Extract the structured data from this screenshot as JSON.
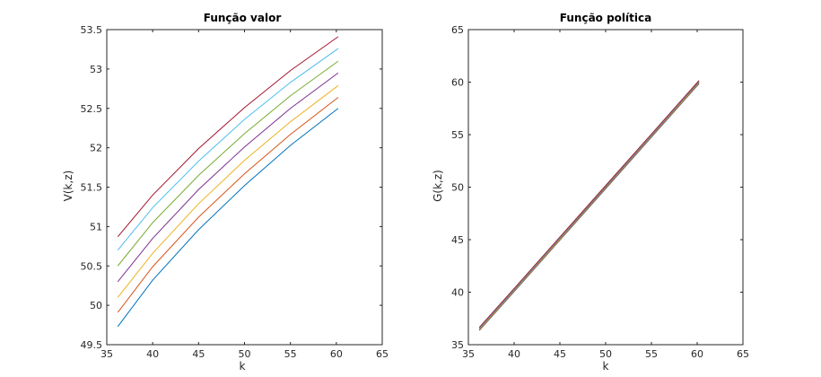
{
  "chart_data": [
    {
      "type": "line",
      "title": "Função valor",
      "xlabel": "k",
      "ylabel": "V(k,z)",
      "xlim": [
        35,
        65
      ],
      "ylim": [
        49.5,
        53.5
      ],
      "xticks": [
        35,
        40,
        45,
        50,
        55,
        60,
        65
      ],
      "yticks": [
        49.5,
        50,
        50.5,
        51,
        51.5,
        52,
        52.5,
        53,
        53.5
      ],
      "x": [
        36.2,
        40,
        45,
        50,
        55,
        60.2
      ],
      "series": [
        {
          "color": "#0072BD",
          "values": [
            49.73,
            50.32,
            50.96,
            51.52,
            52.03,
            52.5
          ]
        },
        {
          "color": "#D95319",
          "values": [
            49.91,
            50.49,
            51.12,
            51.67,
            52.17,
            52.64
          ]
        },
        {
          "color": "#EDB120",
          "values": [
            50.1,
            50.66,
            51.29,
            51.84,
            52.33,
            52.79
          ]
        },
        {
          "color": "#7E2F8E",
          "values": [
            50.3,
            50.85,
            51.47,
            52.01,
            52.5,
            52.95
          ]
        },
        {
          "color": "#77AC30",
          "values": [
            50.5,
            51.05,
            51.65,
            52.18,
            52.66,
            53.1
          ]
        },
        {
          "color": "#4DBEEE",
          "values": [
            50.7,
            51.24,
            51.83,
            52.36,
            52.83,
            53.26
          ]
        },
        {
          "color": "#A2142F",
          "values": [
            50.87,
            51.4,
            51.99,
            52.51,
            52.98,
            53.41
          ]
        }
      ]
    },
    {
      "type": "line",
      "title": "Função política",
      "xlabel": "k",
      "ylabel": "G(k,z)",
      "xlim": [
        35,
        65
      ],
      "ylim": [
        35,
        65
      ],
      "xticks": [
        35,
        40,
        45,
        50,
        55,
        60,
        65
      ],
      "yticks": [
        35,
        40,
        45,
        50,
        55,
        60,
        65
      ],
      "x": [
        36.2,
        40,
        45,
        50,
        55,
        60.2
      ],
      "series": [
        {
          "color": "#0072BD",
          "values": [
            36.35,
            40.05,
            44.95,
            49.85,
            54.75,
            59.85
          ]
        },
        {
          "color": "#D95319",
          "values": [
            36.4,
            40.1,
            45.0,
            49.9,
            54.8,
            59.9
          ]
        },
        {
          "color": "#EDB120",
          "values": [
            36.45,
            40.15,
            45.05,
            49.95,
            54.85,
            59.95
          ]
        },
        {
          "color": "#7E2F8E",
          "values": [
            36.5,
            40.2,
            45.1,
            50.0,
            54.9,
            60.0
          ]
        },
        {
          "color": "#77AC30",
          "values": [
            36.55,
            40.25,
            45.15,
            50.05,
            54.95,
            60.05
          ]
        },
        {
          "color": "#4DBEEE",
          "values": [
            36.6,
            40.3,
            45.2,
            50.1,
            55.0,
            60.1
          ]
        },
        {
          "color": "#A2142F",
          "values": [
            36.65,
            40.35,
            45.25,
            50.15,
            55.05,
            60.15
          ]
        }
      ]
    }
  ]
}
